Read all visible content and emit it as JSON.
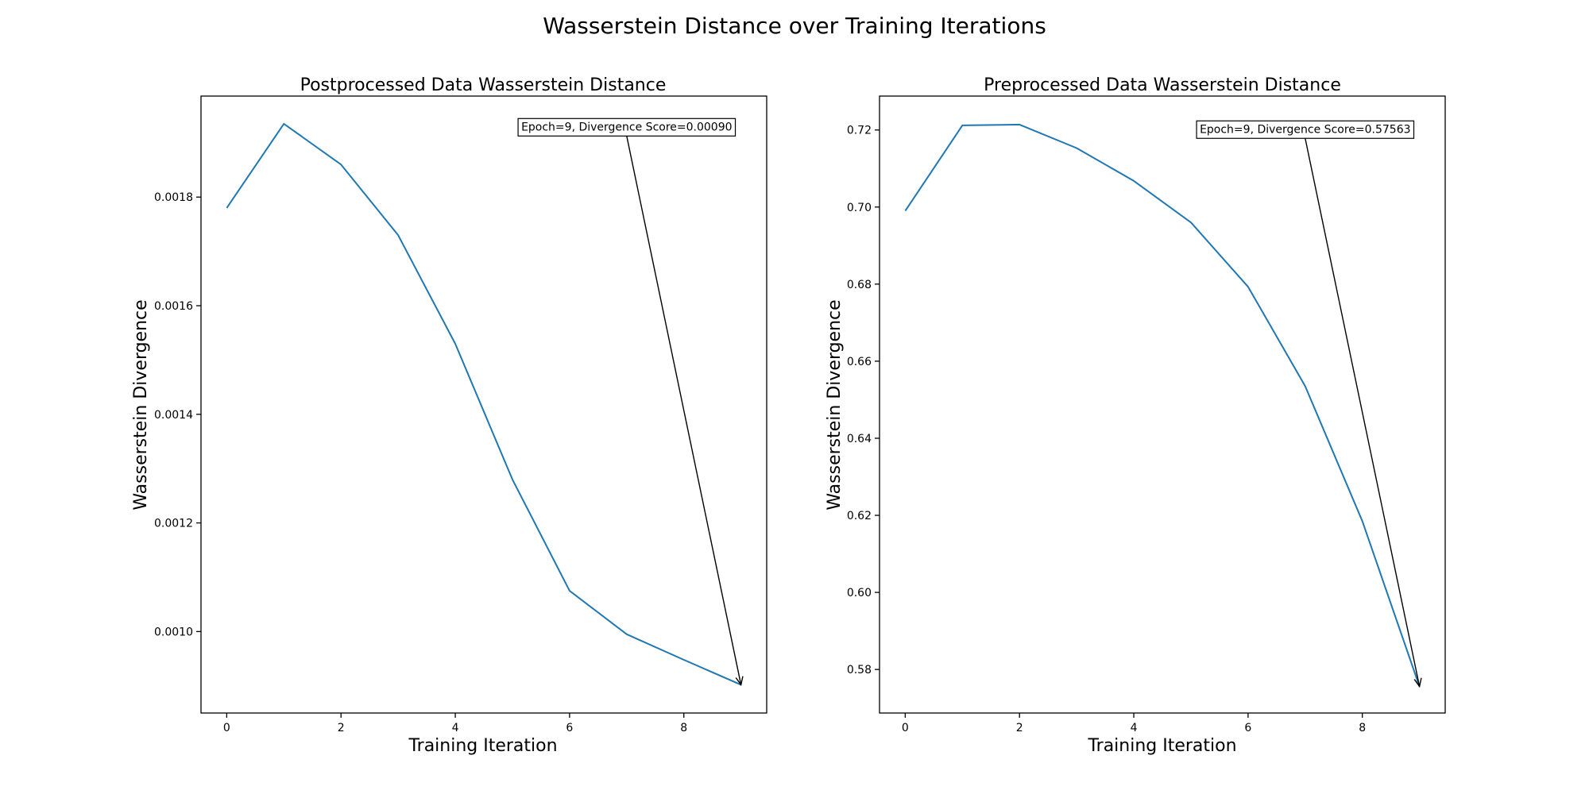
{
  "figure": {
    "title": "Wasserstein Distance over Training Iterations"
  },
  "colors": {
    "line": "#1f77b4"
  },
  "chart_data": [
    {
      "type": "line",
      "title": "Postprocessed Data Wasserstein Distance",
      "xlabel": "Training Iteration",
      "ylabel": "Wasserstein Divergence",
      "x": [
        0,
        1,
        2,
        3,
        4,
        5,
        6,
        7,
        8,
        9
      ],
      "series": [
        {
          "values": [
            0.00178,
            0.001935,
            0.00186,
            0.00173,
            0.00153,
            0.00128,
            0.001075,
            0.000995,
            0.000948,
            0.000902
          ]
        }
      ],
      "xlim": [
        -0.45,
        9.45
      ],
      "ylim": [
        0.00085,
        0.001986
      ],
      "xticks": [
        0,
        2,
        4,
        6,
        8
      ],
      "xtick_labels": [
        "0",
        "2",
        "4",
        "6",
        "8"
      ],
      "yticks": [
        0.001,
        0.0012,
        0.0014,
        0.0016,
        0.0018
      ],
      "ytick_labels": [
        "0.0010",
        "0.0012",
        "0.0014",
        "0.0016",
        "0.0018"
      ],
      "annotation": {
        "text": "Epoch=9, Divergence Score=0.00090",
        "point": [
          9,
          0.000902
        ],
        "text_pos": [
          7,
          0.00193
        ]
      },
      "grid": false,
      "legend": "none"
    },
    {
      "type": "line",
      "title": "Preprocessed Data Wasserstein Distance",
      "xlabel": "Training Iteration",
      "ylabel": "Wasserstein Divergence",
      "x": [
        0,
        1,
        2,
        3,
        4,
        5,
        6,
        7,
        8,
        9
      ],
      "series": [
        {
          "values": [
            0.699,
            0.7212,
            0.7214,
            0.7153,
            0.7068,
            0.696,
            0.6793,
            0.6535,
            0.6185,
            0.5756
          ]
        }
      ],
      "xlim": [
        -0.45,
        9.45
      ],
      "ylim": [
        0.5687,
        0.7288
      ],
      "xticks": [
        0,
        2,
        4,
        6,
        8
      ],
      "xtick_labels": [
        "0",
        "2",
        "4",
        "6",
        "8"
      ],
      "yticks": [
        0.58,
        0.6,
        0.62,
        0.64,
        0.66,
        0.68,
        0.7,
        0.72
      ],
      "ytick_labels": [
        "0.58",
        "0.60",
        "0.62",
        "0.64",
        "0.66",
        "0.68",
        "0.70",
        "0.72"
      ],
      "annotation": {
        "text": "Epoch=9, Divergence Score=0.57563",
        "point": [
          9,
          0.5756
        ],
        "text_pos": [
          7,
          0.7203
        ]
      },
      "grid": false,
      "legend": "none"
    }
  ]
}
